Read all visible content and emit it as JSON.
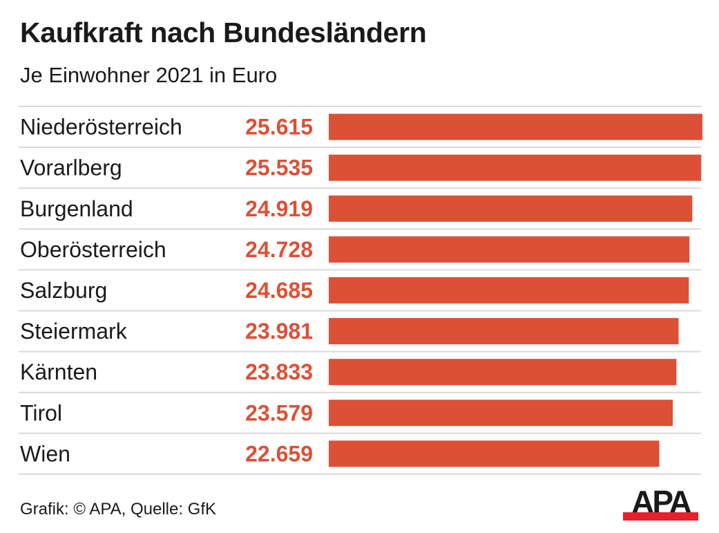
{
  "chart_data": {
    "type": "bar",
    "orientation": "horizontal",
    "title": "Kaufkraft nach Bundesländern",
    "subtitle": "Je Einwohner 2021 in Euro",
    "categories": [
      "Niederösterreich",
      "Vorarlberg",
      "Burgenland",
      "Oberösterreich",
      "Salzburg",
      "Steiermark",
      "Kärnten",
      "Tirol",
      "Wien"
    ],
    "values": [
      25615,
      25535,
      24919,
      24728,
      24685,
      23981,
      23833,
      23579,
      22659
    ],
    "value_labels": [
      "25.615",
      "25.535",
      "24.919",
      "24.728",
      "24.685",
      "23.981",
      "23.833",
      "23.579",
      "22.659"
    ],
    "xlabel": "",
    "ylabel": "",
    "xlim": [
      0,
      25615
    ],
    "grid": false,
    "legend": "none",
    "colors": {
      "bar": "#dc5036",
      "value_label": "#dc5036",
      "separator": "#d9d9d9",
      "text": "#1a1a1a"
    }
  },
  "footer": {
    "credit": "Grafik: © APA, Quelle: GfK"
  },
  "logo": {
    "text": "APA",
    "text_color": "#1a1a1a",
    "bar_color": "#e3222b"
  }
}
